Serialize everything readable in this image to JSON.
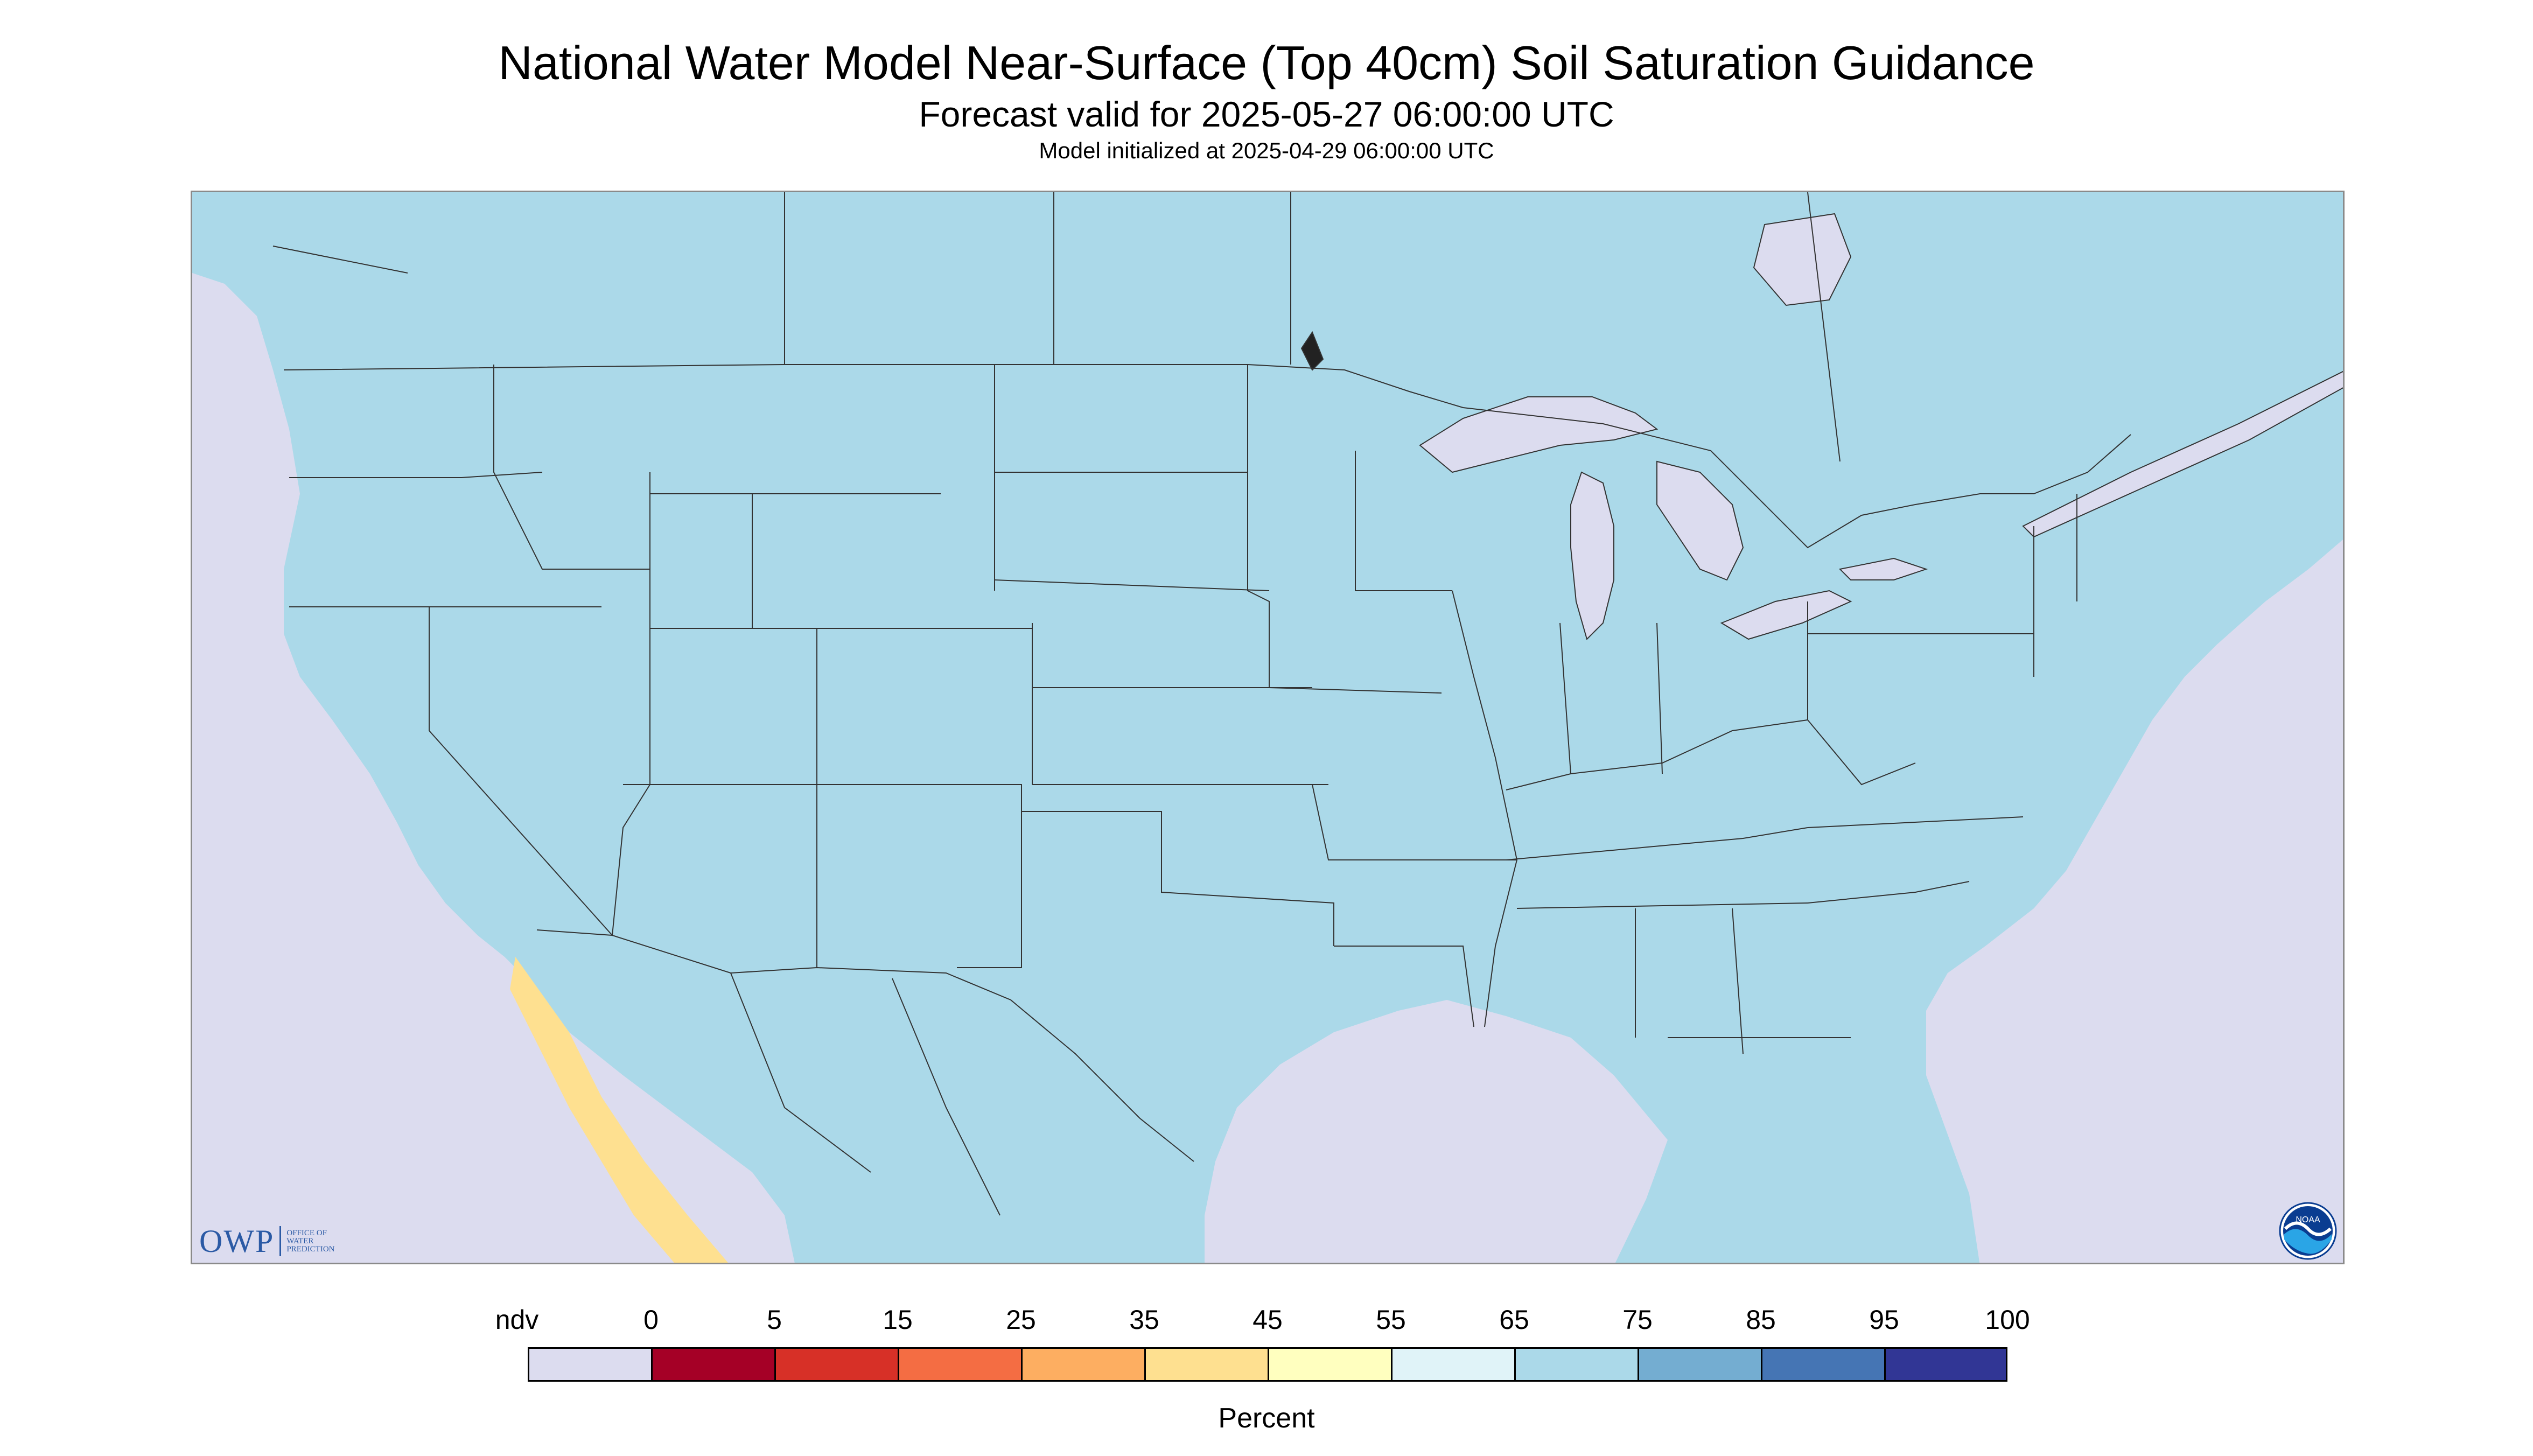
{
  "title": "National Water Model Near-Surface (Top 40cm) Soil Saturation Guidance",
  "subtitle": "Forecast valid for 2025-05-27 06:00:00 UTC",
  "init_line": "Model initialized at 2025-04-29 06:00:00 UTC",
  "logos": {
    "owp_text": "OWP",
    "owp_small": [
      "OFFICE OF",
      "WATER",
      "PREDICTION"
    ],
    "noaa_text": "NOAA"
  },
  "legend": {
    "unit": "Percent",
    "labels": [
      "ndv",
      "0",
      "5",
      "15",
      "25",
      "35",
      "45",
      "55",
      "65",
      "75",
      "85",
      "95",
      "100"
    ],
    "colors": [
      "#dcdcef",
      "#a50026",
      "#d73027",
      "#f46d43",
      "#fdae61",
      "#fee090",
      "#ffffbf",
      "#e0f3f8",
      "#abd9e9",
      "#74add1",
      "#4575b4",
      "#313695"
    ]
  },
  "map": {
    "projection": "Lambert conformal, CONUS",
    "colors": {
      "water": "#dcdcef",
      "land": "#abd9e9",
      "boundary": "#333333"
    }
  }
}
